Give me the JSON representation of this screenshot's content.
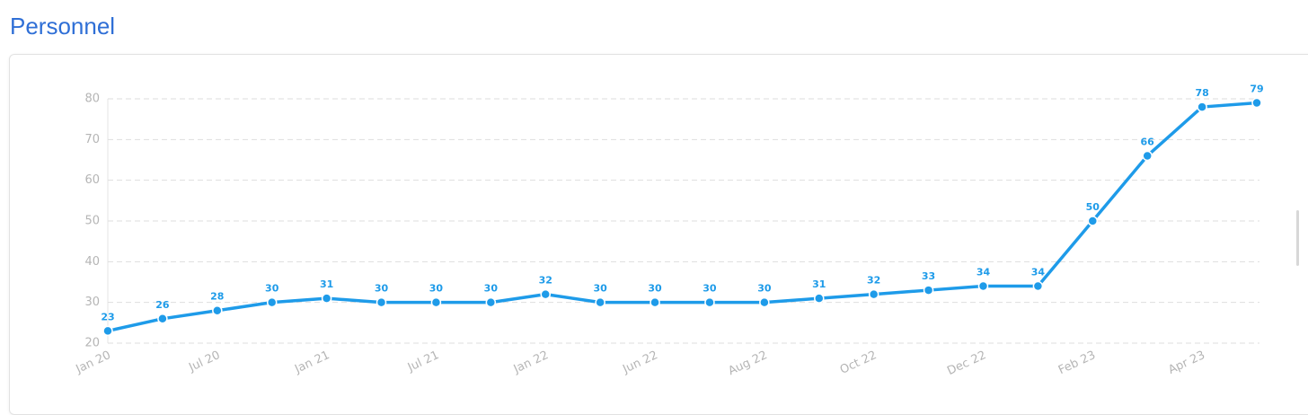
{
  "title": "Personnel",
  "chart_data": {
    "type": "line",
    "categories": [
      "Jan 20",
      null,
      "Jul 20",
      null,
      "Jan 21",
      null,
      "Jul 21",
      null,
      "Jan 22",
      null,
      "Jun 22",
      null,
      "Aug 22",
      null,
      "Oct 22",
      null,
      "Dec 22",
      null,
      "Feb 23",
      null,
      "Apr 23",
      null
    ],
    "values": [
      23,
      26,
      28,
      30,
      31,
      30,
      30,
      30,
      32,
      30,
      30,
      30,
      30,
      31,
      32,
      33,
      34,
      34,
      50,
      66,
      78,
      79
    ],
    "color": "#1e9be9",
    "ylim": [
      20,
      80
    ],
    "yticks": [
      20,
      30,
      40,
      50,
      60,
      70,
      80
    ],
    "grid": true
  }
}
